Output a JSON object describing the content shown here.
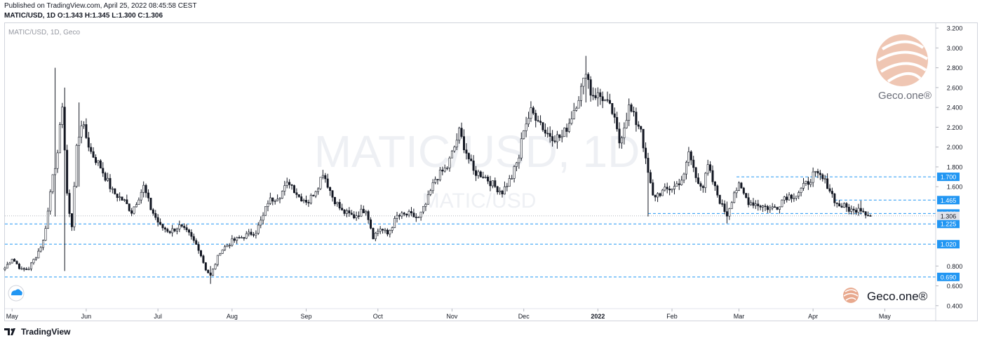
{
  "header": {
    "published_line": "Published on TradingView.com, April 25, 2022 08:45:58 CEST",
    "ohlc_line": "MATIC/USD, 1D O:1.343 H:1.345 L:1.300 C:1.306"
  },
  "footer": {
    "brand": "TradingView",
    "logo_icon": "tradingview-logo-icon"
  },
  "branding": {
    "geco_top": "Geco.one®",
    "geco_bottom": "Geco.one®",
    "tv_badge_icon": "tradingview-cloud-icon"
  },
  "colors": {
    "up": "#26a69a",
    "down": "#ef5350",
    "candle": "#131722",
    "level_line": "#2196f3",
    "level_badge": "#2196f3",
    "price_badge": "#e0e3eb",
    "watermark": "#f0f2f5",
    "brand_orange": "#e8a98e"
  },
  "chart_data": {
    "type": "candlestick",
    "title": "MATIC/USD, 1D, Geco",
    "watermark_large": "MATIC/USD, 1D",
    "watermark_small": "MATIC/USD",
    "y_ticks": [
      "3.200",
      "3.000",
      "2.800",
      "2.600",
      "2.400",
      "2.200",
      "2.000",
      "1.800",
      "1.600",
      "0.800",
      "0.600",
      "0.400"
    ],
    "y_tick_values": [
      3.2,
      3.0,
      2.8,
      2.6,
      2.4,
      2.2,
      2.0,
      1.8,
      1.6,
      0.8,
      0.6,
      0.4
    ],
    "x_ticks": [
      "May",
      "Jun",
      "Jul",
      "Aug",
      "Sep",
      "Oct",
      "Nov",
      "Dec",
      "2022",
      "Feb",
      "Mar",
      "Apr",
      "May"
    ],
    "x_tick_dates": [
      "2021-05-01",
      "2021-06-01",
      "2021-07-01",
      "2021-08-01",
      "2021-09-01",
      "2021-10-01",
      "2021-11-01",
      "2021-12-01",
      "2022-01-01",
      "2022-02-01",
      "2022-03-01",
      "2022-04-01",
      "2022-05-01"
    ],
    "x_range": [
      "2021-04-28",
      "2022-05-22"
    ],
    "ylim": [
      0.25,
      3.25
    ],
    "last_price": {
      "value": 1.306,
      "label": "1.306"
    },
    "levels": [
      {
        "value": 1.7,
        "label": "1.700",
        "from": "2022-02-28"
      },
      {
        "value": 1.465,
        "label": "1.465",
        "from": "2022-04-10"
      },
      {
        "value": 1.33,
        "label": "1.330",
        "from": "2022-01-22"
      },
      {
        "value": 1.225,
        "label": "1.225",
        "from": "2021-04-28"
      },
      {
        "value": 1.02,
        "label": "1.020",
        "from": "2021-04-28"
      },
      {
        "value": 0.69,
        "label": "0.690",
        "from": "2021-04-28"
      }
    ],
    "series_anchors": [
      {
        "date": "2021-04-28",
        "close": 0.78
      },
      {
        "date": "2021-05-01",
        "close": 0.88
      },
      {
        "date": "2021-05-05",
        "close": 0.76
      },
      {
        "date": "2021-05-08",
        "close": 0.78
      },
      {
        "date": "2021-05-11",
        "close": 0.9
      },
      {
        "date": "2021-05-14",
        "close": 1.05
      },
      {
        "date": "2021-05-16",
        "close": 1.35
      },
      {
        "date": "2021-05-18",
        "close": 1.75
      },
      {
        "date": "2021-05-20",
        "close": 1.9
      },
      {
        "date": "2021-05-22",
        "close": 2.45
      },
      {
        "date": "2021-05-24",
        "close": 1.5
      },
      {
        "date": "2021-05-26",
        "close": 1.2
      },
      {
        "date": "2021-05-28",
        "close": 2.0
      },
      {
        "date": "2021-05-30",
        "close": 2.25
      },
      {
        "date": "2021-06-03",
        "close": 1.95
      },
      {
        "date": "2021-06-07",
        "close": 1.8
      },
      {
        "date": "2021-06-12",
        "close": 1.55
      },
      {
        "date": "2021-06-17",
        "close": 1.45
      },
      {
        "date": "2021-06-20",
        "close": 1.35
      },
      {
        "date": "2021-06-25",
        "close": 1.6
      },
      {
        "date": "2021-06-28",
        "close": 1.38
      },
      {
        "date": "2021-07-02",
        "close": 1.2
      },
      {
        "date": "2021-07-06",
        "close": 1.15
      },
      {
        "date": "2021-07-10",
        "close": 1.2
      },
      {
        "date": "2021-07-14",
        "close": 1.12
      },
      {
        "date": "2021-07-18",
        "close": 0.98
      },
      {
        "date": "2021-07-21",
        "close": 0.77
      },
      {
        "date": "2021-07-23",
        "close": 0.7
      },
      {
        "date": "2021-07-27",
        "close": 0.95
      },
      {
        "date": "2021-08-01",
        "close": 1.05
      },
      {
        "date": "2021-08-06",
        "close": 1.1
      },
      {
        "date": "2021-08-11",
        "close": 1.15
      },
      {
        "date": "2021-08-14",
        "close": 1.3
      },
      {
        "date": "2021-08-16",
        "close": 1.45
      },
      {
        "date": "2021-08-21",
        "close": 1.52
      },
      {
        "date": "2021-08-25",
        "close": 1.65
      },
      {
        "date": "2021-08-29",
        "close": 1.5
      },
      {
        "date": "2021-09-02",
        "close": 1.45
      },
      {
        "date": "2021-09-06",
        "close": 1.62
      },
      {
        "date": "2021-09-08",
        "close": 1.75
      },
      {
        "date": "2021-09-12",
        "close": 1.5
      },
      {
        "date": "2021-09-16",
        "close": 1.35
      },
      {
        "date": "2021-09-21",
        "close": 1.3
      },
      {
        "date": "2021-09-26",
        "close": 1.38
      },
      {
        "date": "2021-09-29",
        "close": 1.1
      },
      {
        "date": "2021-10-02",
        "close": 1.18
      },
      {
        "date": "2021-10-05",
        "close": 1.12
      },
      {
        "date": "2021-10-09",
        "close": 1.3
      },
      {
        "date": "2021-10-14",
        "close": 1.32
      },
      {
        "date": "2021-10-18",
        "close": 1.28
      },
      {
        "date": "2021-10-21",
        "close": 1.42
      },
      {
        "date": "2021-10-25",
        "close": 1.68
      },
      {
        "date": "2021-10-30",
        "close": 1.8
      },
      {
        "date": "2021-11-02",
        "close": 2.0
      },
      {
        "date": "2021-11-04",
        "close": 2.15
      },
      {
        "date": "2021-11-07",
        "close": 1.95
      },
      {
        "date": "2021-11-10",
        "close": 1.75
      },
      {
        "date": "2021-11-14",
        "close": 1.72
      },
      {
        "date": "2021-11-19",
        "close": 1.6
      },
      {
        "date": "2021-11-22",
        "close": 1.55
      },
      {
        "date": "2021-11-26",
        "close": 1.7
      },
      {
        "date": "2021-11-29",
        "close": 1.9
      },
      {
        "date": "2021-12-01",
        "close": 2.2
      },
      {
        "date": "2021-12-04",
        "close": 2.35
      },
      {
        "date": "2021-12-07",
        "close": 2.3
      },
      {
        "date": "2021-12-10",
        "close": 2.15
      },
      {
        "date": "2021-12-14",
        "close": 2.1
      },
      {
        "date": "2021-12-17",
        "close": 2.1
      },
      {
        "date": "2021-12-20",
        "close": 2.25
      },
      {
        "date": "2021-12-23",
        "close": 2.45
      },
      {
        "date": "2021-12-26",
        "close": 2.65
      },
      {
        "date": "2021-12-27",
        "close": 2.8
      },
      {
        "date": "2021-12-29",
        "close": 2.55
      },
      {
        "date": "2022-01-03",
        "close": 2.5
      },
      {
        "date": "2022-01-07",
        "close": 2.35
      },
      {
        "date": "2022-01-10",
        "close": 2.05
      },
      {
        "date": "2022-01-14",
        "close": 2.4
      },
      {
        "date": "2022-01-17",
        "close": 2.25
      },
      {
        "date": "2022-01-19",
        "close": 2.2
      },
      {
        "date": "2022-01-21",
        "close": 1.85
      },
      {
        "date": "2022-01-24",
        "close": 1.5
      },
      {
        "date": "2022-01-28",
        "close": 1.55
      },
      {
        "date": "2022-02-02",
        "close": 1.6
      },
      {
        "date": "2022-02-06",
        "close": 1.7
      },
      {
        "date": "2022-02-08",
        "close": 1.95
      },
      {
        "date": "2022-02-11",
        "close": 1.7
      },
      {
        "date": "2022-02-14",
        "close": 1.6
      },
      {
        "date": "2022-02-16",
        "close": 1.8
      },
      {
        "date": "2022-02-19",
        "close": 1.58
      },
      {
        "date": "2022-02-22",
        "close": 1.4
      },
      {
        "date": "2022-02-24",
        "close": 1.32
      },
      {
        "date": "2022-02-27",
        "close": 1.55
      },
      {
        "date": "2022-03-01",
        "close": 1.6
      },
      {
        "date": "2022-03-05",
        "close": 1.45
      },
      {
        "date": "2022-03-09",
        "close": 1.42
      },
      {
        "date": "2022-03-14",
        "close": 1.38
      },
      {
        "date": "2022-03-17",
        "close": 1.4
      },
      {
        "date": "2022-03-20",
        "close": 1.5
      },
      {
        "date": "2022-03-25",
        "close": 1.52
      },
      {
        "date": "2022-03-30",
        "close": 1.65
      },
      {
        "date": "2022-04-01",
        "close": 1.72
      },
      {
        "date": "2022-04-04",
        "close": 1.7
      },
      {
        "date": "2022-04-07",
        "close": 1.62
      },
      {
        "date": "2022-04-11",
        "close": 1.42
      },
      {
        "date": "2022-04-14",
        "close": 1.4
      },
      {
        "date": "2022-04-18",
        "close": 1.35
      },
      {
        "date": "2022-04-20",
        "close": 1.4
      },
      {
        "date": "2022-04-22",
        "close": 1.36
      },
      {
        "date": "2022-04-25",
        "close": 1.306
      }
    ],
    "spikes": [
      {
        "date": "2021-05-19",
        "high": 2.8,
        "low": 1.3
      },
      {
        "date": "2021-05-23",
        "high": 2.6,
        "low": 0.75
      },
      {
        "date": "2021-05-29",
        "high": 2.45,
        "low": 1.6
      },
      {
        "date": "2021-07-23",
        "high": 0.8,
        "low": 0.62
      },
      {
        "date": "2021-12-27",
        "high": 2.92,
        "low": 2.45
      },
      {
        "date": "2022-01-22",
        "high": 1.9,
        "low": 1.3
      },
      {
        "date": "2022-02-24",
        "high": 1.45,
        "low": 1.23
      },
      {
        "date": "2022-04-21",
        "high": 1.46,
        "low": 1.32
      }
    ]
  }
}
